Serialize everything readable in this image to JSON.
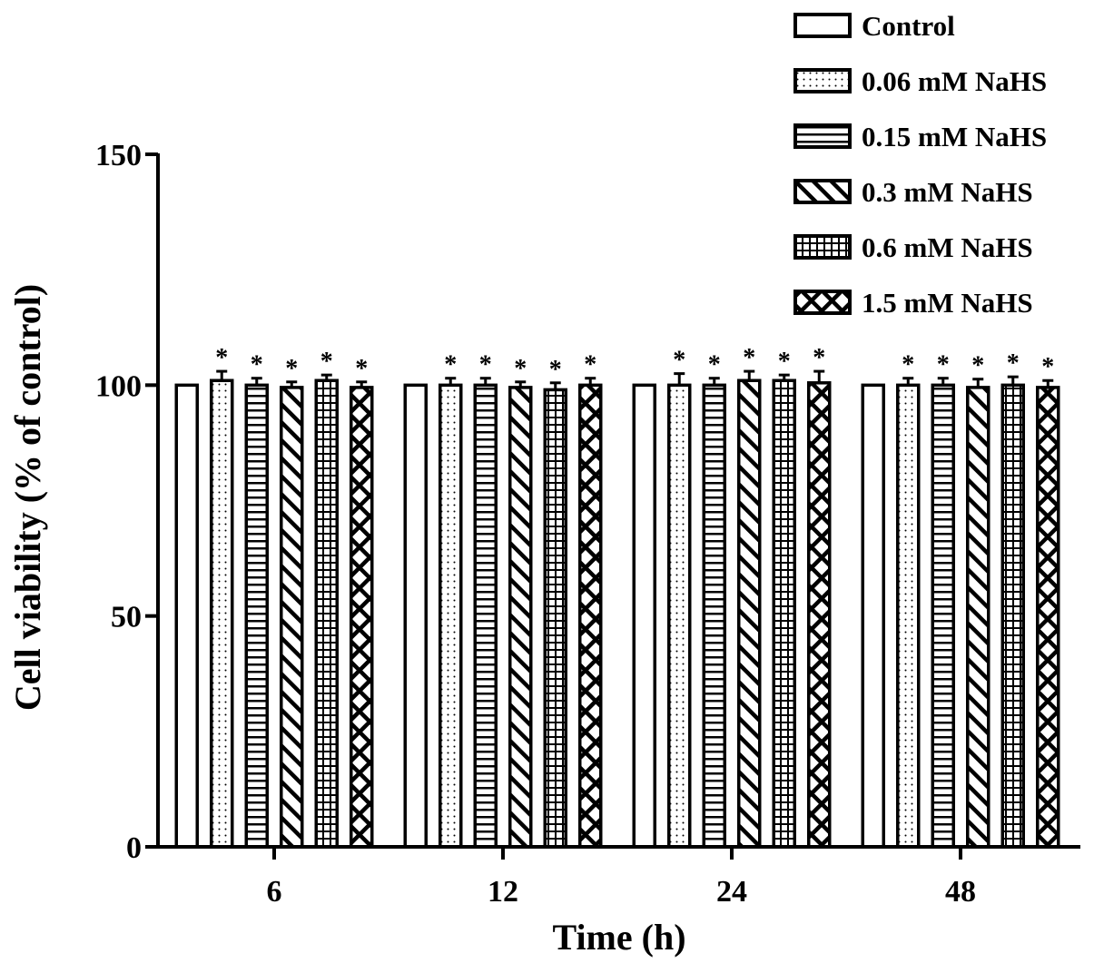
{
  "chart_data": {
    "type": "bar",
    "categories": [
      "6",
      "12",
      "24",
      "48"
    ],
    "xlabel": "Time (h)",
    "ylabel": "Cell viability (% of control)",
    "ylim": [
      0,
      150
    ],
    "yticks": [
      0,
      50,
      100,
      150
    ],
    "grid": false,
    "legend_position": "top-right",
    "significance_marker": "*",
    "series": [
      {
        "name": "Control",
        "pattern": "empty",
        "values": [
          100,
          100,
          100,
          100
        ],
        "errors": [
          0,
          0,
          0,
          0
        ],
        "significant": [
          false,
          false,
          false,
          false
        ]
      },
      {
        "name": "0.06 mM NaHS",
        "pattern": "dots",
        "values": [
          101,
          100,
          100,
          100
        ],
        "errors": [
          2,
          1.5,
          2.5,
          1.5
        ],
        "significant": [
          true,
          true,
          true,
          true
        ]
      },
      {
        "name": "0.15 mM NaHS",
        "pattern": "horizontal-lines",
        "values": [
          100,
          100,
          100,
          100
        ],
        "errors": [
          1.5,
          1.5,
          1.5,
          1.5
        ],
        "significant": [
          true,
          true,
          true,
          true
        ]
      },
      {
        "name": "0.3 mM NaHS",
        "pattern": "diagonal-lines",
        "values": [
          99.5,
          99.5,
          101,
          99.5
        ],
        "errors": [
          1.2,
          1.2,
          2,
          1.8
        ],
        "significant": [
          true,
          true,
          true,
          true
        ]
      },
      {
        "name": "0.6 mM NaHS",
        "pattern": "grid",
        "values": [
          101,
          99,
          101,
          100
        ],
        "errors": [
          1.2,
          1.5,
          1.2,
          1.8
        ],
        "significant": [
          true,
          true,
          true,
          true
        ]
      },
      {
        "name": "1.5 mM NaHS",
        "pattern": "crosshatch",
        "values": [
          99.5,
          100,
          100.5,
          99.5
        ],
        "errors": [
          1.2,
          1.5,
          2.5,
          1.5
        ],
        "significant": [
          true,
          true,
          true,
          true
        ]
      }
    ]
  }
}
